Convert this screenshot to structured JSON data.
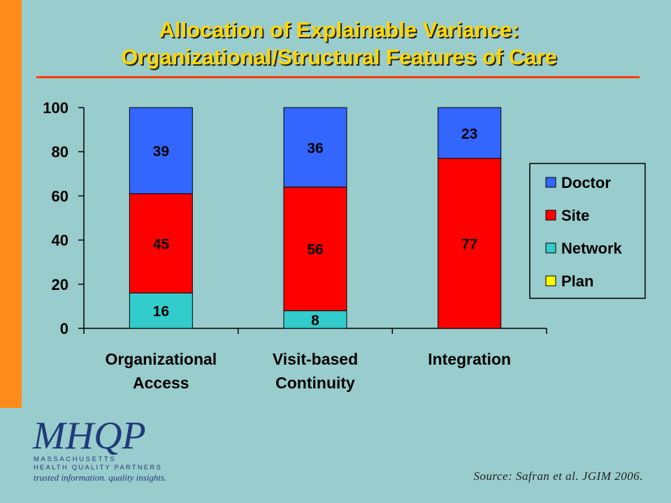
{
  "title": {
    "line1": "Allocation of Explainable Variance:",
    "line2": "Organizational/Structural Features of Care"
  },
  "colors": {
    "background": "#99cccc",
    "left_bar": "#ff8c1a",
    "title": "#ffd700",
    "title_rule": "#ff3b00"
  },
  "chart_data": {
    "type": "bar",
    "stacked": true,
    "categories": [
      [
        "Organizational",
        "Access"
      ],
      [
        "Visit-based",
        "Continuity"
      ],
      [
        "Integration"
      ]
    ],
    "series": [
      {
        "name": "Network",
        "color": "#33cccc",
        "values": [
          16,
          8,
          0
        ]
      },
      {
        "name": "Site",
        "color": "#ff0000",
        "values": [
          45,
          56,
          77
        ]
      },
      {
        "name": "Doctor",
        "color": "#3366ff",
        "values": [
          39,
          36,
          23
        ]
      },
      {
        "name": "Plan",
        "color": "#ffff00",
        "values": [
          0,
          0,
          0
        ]
      }
    ],
    "legend_order": [
      "Doctor",
      "Site",
      "Network",
      "Plan"
    ],
    "legend_position": "right",
    "ylim": [
      0,
      100
    ],
    "yticks": [
      0,
      20,
      40,
      60,
      80,
      100
    ],
    "grid": false
  },
  "source": "Source:  Safran et al.  JGIM 2006.",
  "logo": {
    "mark": "MHQP",
    "line1": "MASSACHUSETTS",
    "line2": "HEALTH QUALITY PARTNERS",
    "tagline": "trusted information. quality insights."
  }
}
